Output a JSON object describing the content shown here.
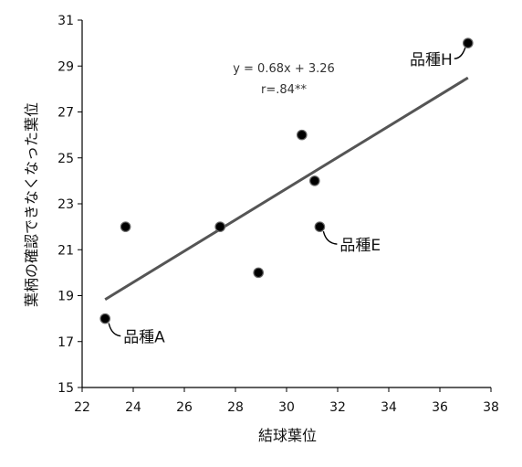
{
  "chart_data": {
    "type": "scatter",
    "xlabel": "結球葉位",
    "ylabel": "葉柄の確認できなくなった葉位",
    "xlim": [
      22,
      38
    ],
    "ylim": [
      15,
      31
    ],
    "xticks": [
      "22",
      "24",
      "26",
      "28",
      "30",
      "32",
      "34",
      "36",
      "38"
    ],
    "yticks": [
      "15",
      "17",
      "19",
      "21",
      "23",
      "25",
      "27",
      "29",
      "31"
    ],
    "grid": false,
    "points": [
      {
        "x": 22.9,
        "y": 18.0,
        "label": "品種A"
      },
      {
        "x": 23.7,
        "y": 22.0,
        "label": ""
      },
      {
        "x": 27.4,
        "y": 22.0,
        "label": ""
      },
      {
        "x": 28.9,
        "y": 20.0,
        "label": ""
      },
      {
        "x": 30.6,
        "y": 26.0,
        "label": ""
      },
      {
        "x": 31.1,
        "y": 24.0,
        "label": ""
      },
      {
        "x": 31.3,
        "y": 22.0,
        "label": "品種E"
      },
      {
        "x": 37.1,
        "y": 30.0,
        "label": "品種H"
      }
    ],
    "trendline": {
      "slope": 0.68,
      "intercept": 3.26,
      "x_range": [
        22.9,
        37.1
      ]
    },
    "annotations": [
      "y = 0.68x + 3.26",
      "r=.84**"
    ]
  }
}
